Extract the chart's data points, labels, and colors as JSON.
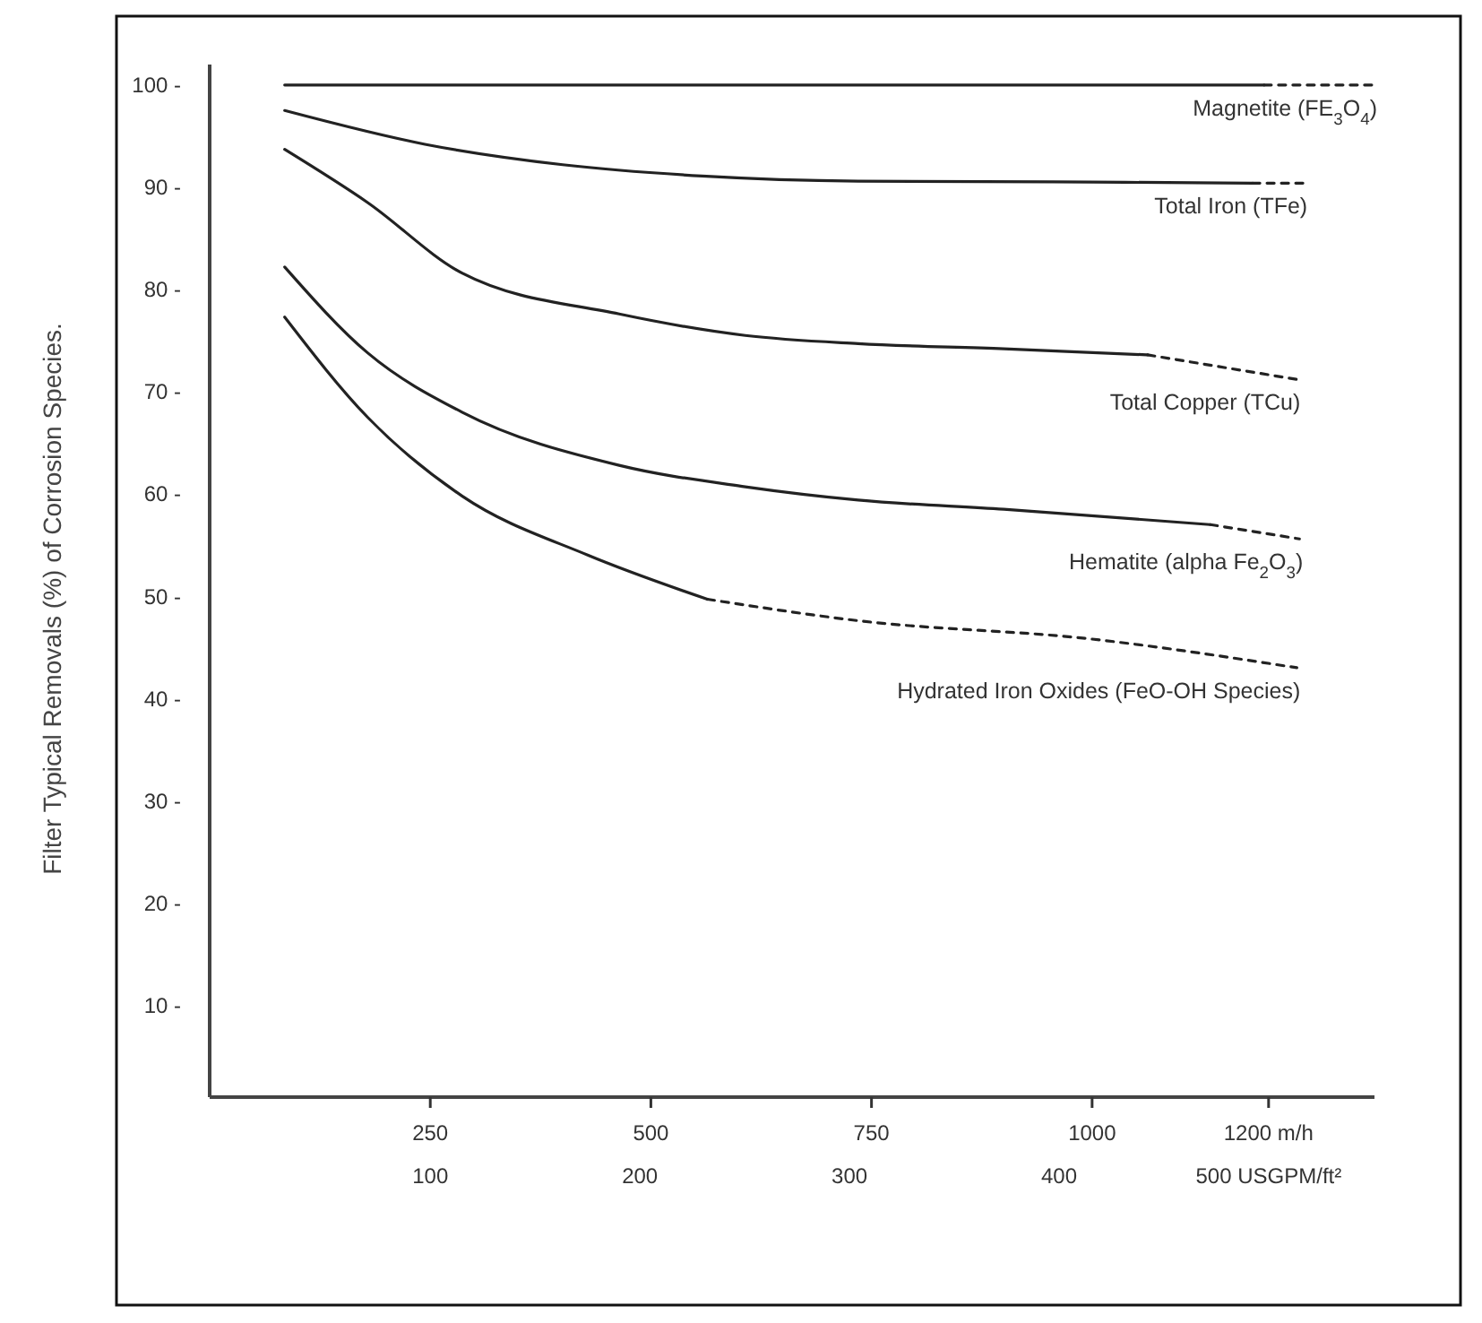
{
  "chart_data": {
    "type": "line",
    "ylabel": "Filter Typical Removals (%) of Corrosion Species.",
    "xlim": [
      0,
      1320
    ],
    "xticks": [
      250,
      500,
      750,
      1000,
      {
        "value": 1200,
        "label": "1200 m/h"
      }
    ],
    "x2lim": [
      -5.3,
      550.5
    ],
    "x2ticks": [
      100,
      200,
      300,
      400,
      {
        "value": 500,
        "label": "500 USGPM/ft²"
      }
    ],
    "ylim": [
      1,
      102
    ],
    "yticks": [
      {
        "value": 10,
        "label": "10 -"
      },
      {
        "value": 20,
        "label": "20 -"
      },
      {
        "value": 30,
        "label": "30 -"
      },
      {
        "value": 40,
        "label": "40 -"
      },
      {
        "value": 50,
        "label": "50 -"
      },
      {
        "value": 60,
        "label": "60 -"
      },
      {
        "value": 70,
        "label": "70 -"
      },
      {
        "value": 80,
        "label": "80 -"
      },
      {
        "value": 90,
        "label": "90 -"
      },
      {
        "value": 100,
        "label": "100 -"
      }
    ],
    "grid": false,
    "marker": "none",
    "series": [
      {
        "color": "#222222",
        "line_style": "solid",
        "x": [
          85,
          600,
          1195
        ],
        "values": [
          100,
          100,
          100
        ]
      },
      {
        "name": "Magnetite (FE$_{3}$O$_{4}$)",
        "color": "#222222",
        "line_style": "dashed",
        "x": [
          1195,
          1319
        ],
        "values": [
          100,
          100
        ]
      },
      {
        "color": "#222222",
        "line_style": "solid",
        "x": [
          85,
          244,
          400,
          558,
          735,
          1000,
          1182
        ],
        "values": [
          97.5,
          94.2,
          92.2,
          91.1,
          90.6,
          90.5,
          90.4
        ]
      },
      {
        "name": "Total Iron (TFe)",
        "color": "#222222",
        "line_style": "dashed",
        "x": [
          1182,
          1240
        ],
        "values": [
          90.4,
          90.4
        ]
      },
      {
        "color": "#222222",
        "line_style": "solid",
        "x": [
          85,
          179,
          286,
          464,
          607,
          735,
          900,
          1063
        ],
        "values": [
          93.7,
          88.5,
          81.6,
          77.6,
          75.5,
          74.7,
          74.2,
          73.6
        ]
      },
      {
        "name": "Total Copper (TCu)",
        "color": "#222222",
        "line_style": "dashed",
        "x": [
          1063,
          1232
        ],
        "values": [
          73.6,
          71.2
        ]
      },
      {
        "color": "#222222",
        "line_style": "solid",
        "x": [
          85,
          179,
          286,
          464,
          607,
          735,
          900,
          1134
        ],
        "values": [
          82.2,
          73.8,
          68.0,
          62.8,
          60.7,
          59.4,
          58.5,
          57.0
        ]
      },
      {
        "name": "Hematite (alpha Fe$_{2}$O$_{3}$)",
        "color": "#222222",
        "line_style": "dashed",
        "x": [
          1134,
          1235
        ],
        "values": [
          57.0,
          55.6
        ]
      },
      {
        "color": "#222222",
        "line_style": "solid",
        "x": [
          85,
          179,
          286,
          429,
          564
        ],
        "values": [
          77.3,
          67.5,
          59.8,
          54.0,
          49.7
        ]
      },
      {
        "name": "Hydrated Iron Oxides (FeO-OH Species)",
        "color": "#222222",
        "line_style": "dashed",
        "x": [
          564,
          735,
          1000,
          1232
        ],
        "values": [
          49.7,
          47.6,
          45.8,
          43.0
        ]
      }
    ]
  }
}
